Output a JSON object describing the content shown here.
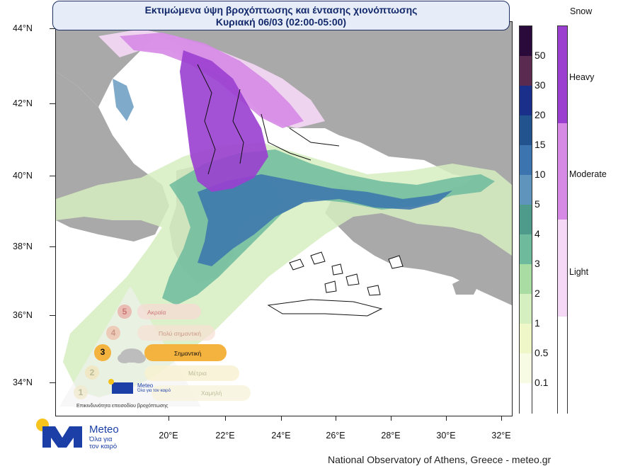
{
  "title": {
    "line1": "Εκτιμώμενα ύψη βροχόπτωσης και έντασης χιονόπτωσης",
    "line2": "Κυριακή 06/03 (02:00-05:00)"
  },
  "axes": {
    "lat_labels": [
      "44°N",
      "42°N",
      "40°N",
      "38°N",
      "36°N",
      "34°N"
    ],
    "lon_labels": [
      "20°E",
      "22°E",
      "24°E",
      "26°E",
      "28°E",
      "30°E",
      "32°E"
    ]
  },
  "rain_legend": {
    "labels": [
      "50",
      "30",
      "20",
      "15",
      "10",
      "5",
      "4",
      "3",
      "2",
      "1",
      "0.5",
      "0.1"
    ],
    "colors": [
      "#2a0a3a",
      "#5a2a50",
      "#1a2f8a",
      "#23538f",
      "#3b74ae",
      "#5f95bd",
      "#4e9a8b",
      "#6dbb9c",
      "#a8dca2",
      "#d6efc1",
      "#eff6c8",
      "#f8fbe4",
      "#ffffff"
    ]
  },
  "snow_legend": {
    "title": "Snow",
    "labels": [
      "Heavy",
      "Moderate",
      "Light"
    ],
    "colors": [
      "#9a3fd0",
      "#d68ae6",
      "#f5d8f6",
      "#ffffff"
    ]
  },
  "hazard_scale": {
    "levels": [
      {
        "num": "5",
        "label": "Ακραία",
        "faded": true
      },
      {
        "num": "4",
        "label": "Πολύ σημαντική",
        "faded": true
      },
      {
        "num": "3",
        "label": "Σημαντική",
        "faded": false
      },
      {
        "num": "2",
        "label": "Μέτρια",
        "faded": true
      },
      {
        "num": "1",
        "label": "Χαμηλή",
        "faded": true
      }
    ],
    "caption": "Επικινδυνότητα επεισοδίου βροχόπτωσης",
    "mini_logo": "Meteo",
    "mini_tag": "Όλα για τον καιρό"
  },
  "brand": {
    "name": "Meteo",
    "tagline_1": "Όλα για",
    "tagline_2": "τον καιρό",
    "credit": "National Observatory of Athens, Greece - meteo.gr"
  }
}
